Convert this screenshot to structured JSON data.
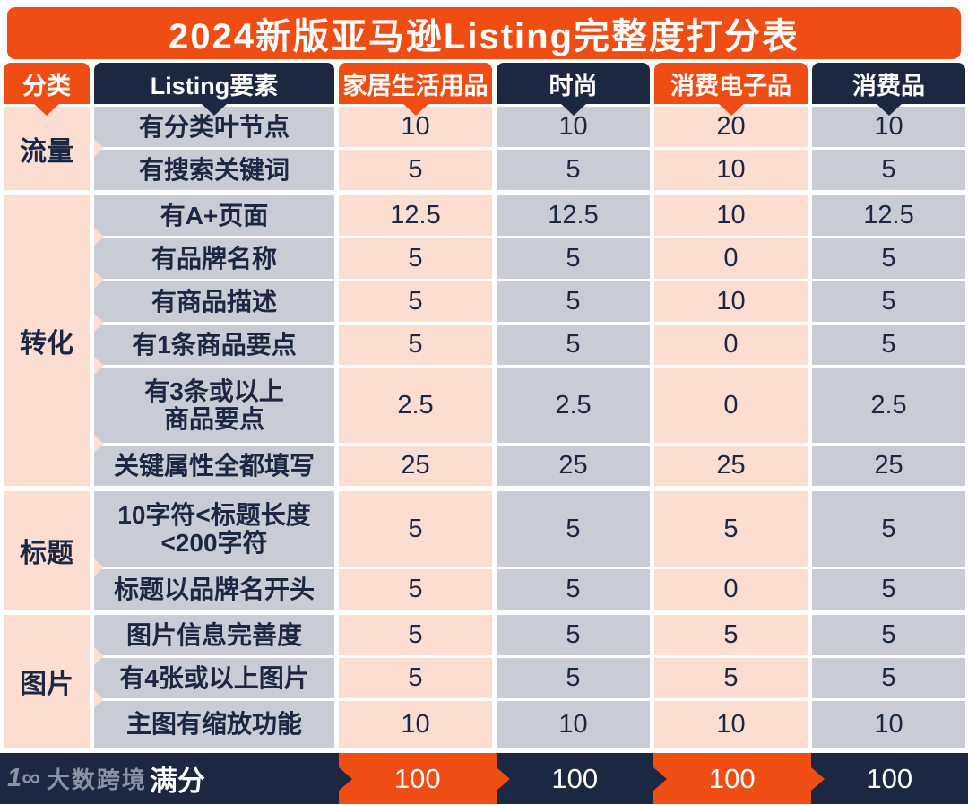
{
  "title": "2024新版亚马逊Listing完整度打分表",
  "colors": {
    "orange": "#F04D15",
    "navy": "#1C2742",
    "pink": "#FBDDD2",
    "gray": "#C9CCD4",
    "text_dark": "#1C2742",
    "logo_gray": "#8B92A3"
  },
  "header": {
    "category": "分类",
    "element": "Listing要素",
    "columns": [
      "家居生活用品",
      "时尚",
      "消费电子品",
      "消费品"
    ]
  },
  "groups": [
    {
      "category": "流量",
      "rows": [
        {
          "label": "有分类叶节点",
          "values": [
            "10",
            "10",
            "20",
            "10"
          ]
        },
        {
          "label": "有搜索关键词",
          "values": [
            "5",
            "5",
            "10",
            "5"
          ]
        }
      ]
    },
    {
      "category": "转化",
      "rows": [
        {
          "label": "有A+页面",
          "values": [
            "12.5",
            "12.5",
            "10",
            "12.5"
          ]
        },
        {
          "label": "有品牌名称",
          "values": [
            "5",
            "5",
            "0",
            "5"
          ]
        },
        {
          "label": "有商品描述",
          "values": [
            "5",
            "5",
            "10",
            "5"
          ]
        },
        {
          "label": "有1条商品要点",
          "values": [
            "5",
            "5",
            "0",
            "5"
          ]
        },
        {
          "label": "有3条或以上\n商品要点",
          "values": [
            "2.5",
            "2.5",
            "0",
            "2.5"
          ]
        },
        {
          "label": "关键属性全都填写",
          "values": [
            "25",
            "25",
            "25",
            "25"
          ]
        }
      ]
    },
    {
      "category": "标题",
      "rows": [
        {
          "label": "10字符<标题长度\n<200字符",
          "values": [
            "5",
            "5",
            "5",
            "5"
          ]
        },
        {
          "label": "标题以品牌名开头",
          "values": [
            "5",
            "5",
            "0",
            "5"
          ]
        }
      ]
    },
    {
      "category": "图片",
      "rows": [
        {
          "label": "图片信息完善度",
          "values": [
            "5",
            "5",
            "5",
            "5"
          ]
        },
        {
          "label": "有4张或以上图片",
          "values": [
            "5",
            "5",
            "5",
            "5"
          ]
        },
        {
          "label": "主图有缩放功能",
          "values": [
            "10",
            "10",
            "10",
            "10"
          ]
        }
      ]
    }
  ],
  "footer": {
    "score_label": "满分",
    "values": [
      "100",
      "100",
      "100",
      "100"
    ],
    "logo": {
      "icon": "1∞",
      "text": "大数跨境"
    }
  },
  "chart_data": {
    "type": "table",
    "title": "2024新版亚马逊Listing完整度打分表",
    "columns": [
      "分类",
      "Listing要素",
      "家居生活用品",
      "时尚",
      "消费电子品",
      "消费品"
    ],
    "rows": [
      [
        "流量",
        "有分类叶节点",
        10,
        10,
        20,
        10
      ],
      [
        "流量",
        "有搜索关键词",
        5,
        5,
        10,
        5
      ],
      [
        "转化",
        "有A+页面",
        12.5,
        12.5,
        10,
        12.5
      ],
      [
        "转化",
        "有品牌名称",
        5,
        5,
        0,
        5
      ],
      [
        "转化",
        "有商品描述",
        5,
        5,
        10,
        5
      ],
      [
        "转化",
        "有1条商品要点",
        5,
        5,
        0,
        5
      ],
      [
        "转化",
        "有3条或以上商品要点",
        2.5,
        2.5,
        0,
        2.5
      ],
      [
        "转化",
        "关键属性全都填写",
        25,
        25,
        25,
        25
      ],
      [
        "标题",
        "10字符<标题长度<200字符",
        5,
        5,
        5,
        5
      ],
      [
        "标题",
        "标题以品牌名开头",
        5,
        5,
        0,
        5
      ],
      [
        "图片",
        "图片信息完善度",
        5,
        5,
        5,
        5
      ],
      [
        "图片",
        "有4张或以上图片",
        5,
        5,
        5,
        5
      ],
      [
        "图片",
        "主图有缩放功能",
        10,
        10,
        10,
        10
      ],
      [
        "满分",
        "满分",
        100,
        100,
        100,
        100
      ]
    ]
  }
}
